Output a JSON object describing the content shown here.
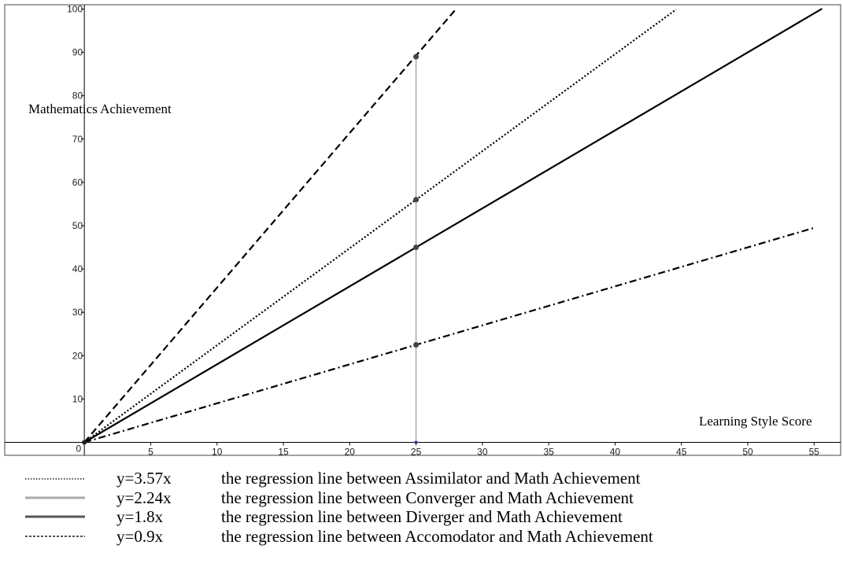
{
  "chart_data": {
    "type": "line",
    "xlabel": "Learning Style Score",
    "ylabel": "Mathematics Achievement",
    "xlim": [
      -6,
      57
    ],
    "ylim": [
      -3,
      101
    ],
    "x_ticks": [
      5,
      10,
      15,
      20,
      25,
      30,
      35,
      40,
      45,
      50,
      55
    ],
    "y_ticks": [
      10,
      20,
      30,
      40,
      50,
      60,
      70,
      80,
      90,
      100
    ],
    "origin_label": "0",
    "grid": false,
    "legend_position": "bottom",
    "series": [
      {
        "slope": 3.57,
        "style": "dashed",
        "x_end": 28,
        "point": [
          25,
          89
        ]
      },
      {
        "slope": 2.24,
        "style": "dotted",
        "x_end": 44.6,
        "point": [
          25,
          56
        ]
      },
      {
        "slope": 1.8,
        "style": "solid",
        "x_end": 55.6,
        "point": [
          25,
          45
        ]
      },
      {
        "slope": 0.9,
        "style": "dashdot",
        "x_end": 55,
        "point": [
          25,
          22.5
        ]
      }
    ],
    "vertical_line": {
      "x": 25,
      "y_top": 89
    }
  },
  "legend": [
    {
      "equation": "y=3.57x",
      "description": "the regression line between Assimilator and Math Achievement",
      "swatch_style": "dotted"
    },
    {
      "equation": "y=2.24x",
      "description": "the regression line between Converger and Math Achievement",
      "swatch_style": "light-solid"
    },
    {
      "equation": "y=1.8x",
      "description": "the regression line between Diverger and Math Achievement",
      "swatch_style": "dark-solid"
    },
    {
      "equation": "y=0.9x",
      "description": "the regression line between Accomodator and Math Achievement",
      "swatch_style": "dashed"
    }
  ]
}
